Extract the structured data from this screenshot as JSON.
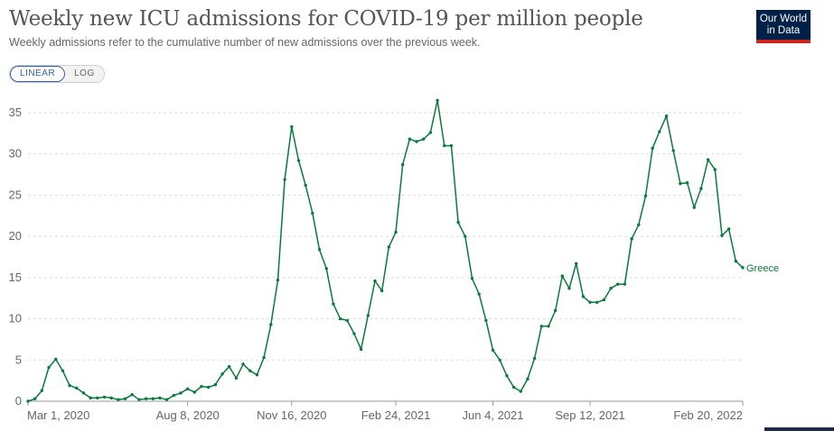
{
  "header": {
    "title": "Weekly new ICU admissions for COVID-19 per million people",
    "subtitle": "Weekly admissions refer to the cumulative number of new admissions over the previous week."
  },
  "logo": {
    "line1": "Our World",
    "line2": "in Data",
    "bg_color": "#002147",
    "accent_color": "#ce261e"
  },
  "controls": {
    "linear_label": "LINEAR",
    "log_label": "LOG",
    "selected": "LINEAR"
  },
  "colors": {
    "series": "#0a7a3e",
    "grid": "#dddddd",
    "axis": "#999999",
    "active_toggle": "#2e5e9f"
  },
  "chart_data": {
    "type": "line",
    "ylim": [
      0,
      36.5
    ],
    "yticks": [
      0,
      5,
      10,
      15,
      20,
      25,
      30,
      35
    ],
    "xticks": [
      "Mar 1, 2020",
      "Aug 8, 2020",
      "Nov 16, 2020",
      "Feb 24, 2021",
      "Jun 4, 2021",
      "Sep 12, 2021",
      "Feb 20, 2022"
    ],
    "grid": "horizontal dashed",
    "series": [
      {
        "name": "Greece",
        "values": [
          0,
          0.3,
          1.3,
          4.1,
          5.1,
          3.7,
          1.9,
          1.6,
          1.0,
          0.4,
          0.4,
          0.5,
          0.4,
          0.2,
          0.3,
          0.8,
          0.2,
          0.3,
          0.3,
          0.4,
          0.2,
          0.7,
          1.0,
          1.5,
          1.1,
          1.8,
          1.7,
          2.0,
          3.3,
          4.2,
          2.8,
          4.5,
          3.7,
          3.2,
          5.3,
          9.3,
          14.7,
          26.9,
          33.3,
          29.2,
          26.2,
          22.8,
          18.4,
          16.1,
          11.8,
          10.0,
          9.8,
          8.2,
          6.3,
          10.4,
          14.6,
          13.4,
          18.7,
          20.5,
          28.7,
          31.8,
          31.5,
          31.8,
          32.6,
          36.5,
          31.0,
          31.0,
          21.7,
          20.0,
          14.9,
          13.0,
          9.8,
          6.2,
          5.0,
          3.1,
          1.7,
          1.2,
          2.7,
          5.2,
          9.1,
          9.1,
          11.0,
          15.2,
          13.7,
          16.7,
          12.7,
          12.0,
          12.0,
          12.3,
          13.7,
          14.2,
          14.2,
          19.7,
          21.4,
          24.9,
          30.7,
          32.7,
          34.6,
          30.4,
          26.4,
          26.5,
          23.5,
          25.8,
          29.3,
          28.1,
          20.1,
          20.9,
          17.0,
          16.2
        ]
      }
    ]
  }
}
